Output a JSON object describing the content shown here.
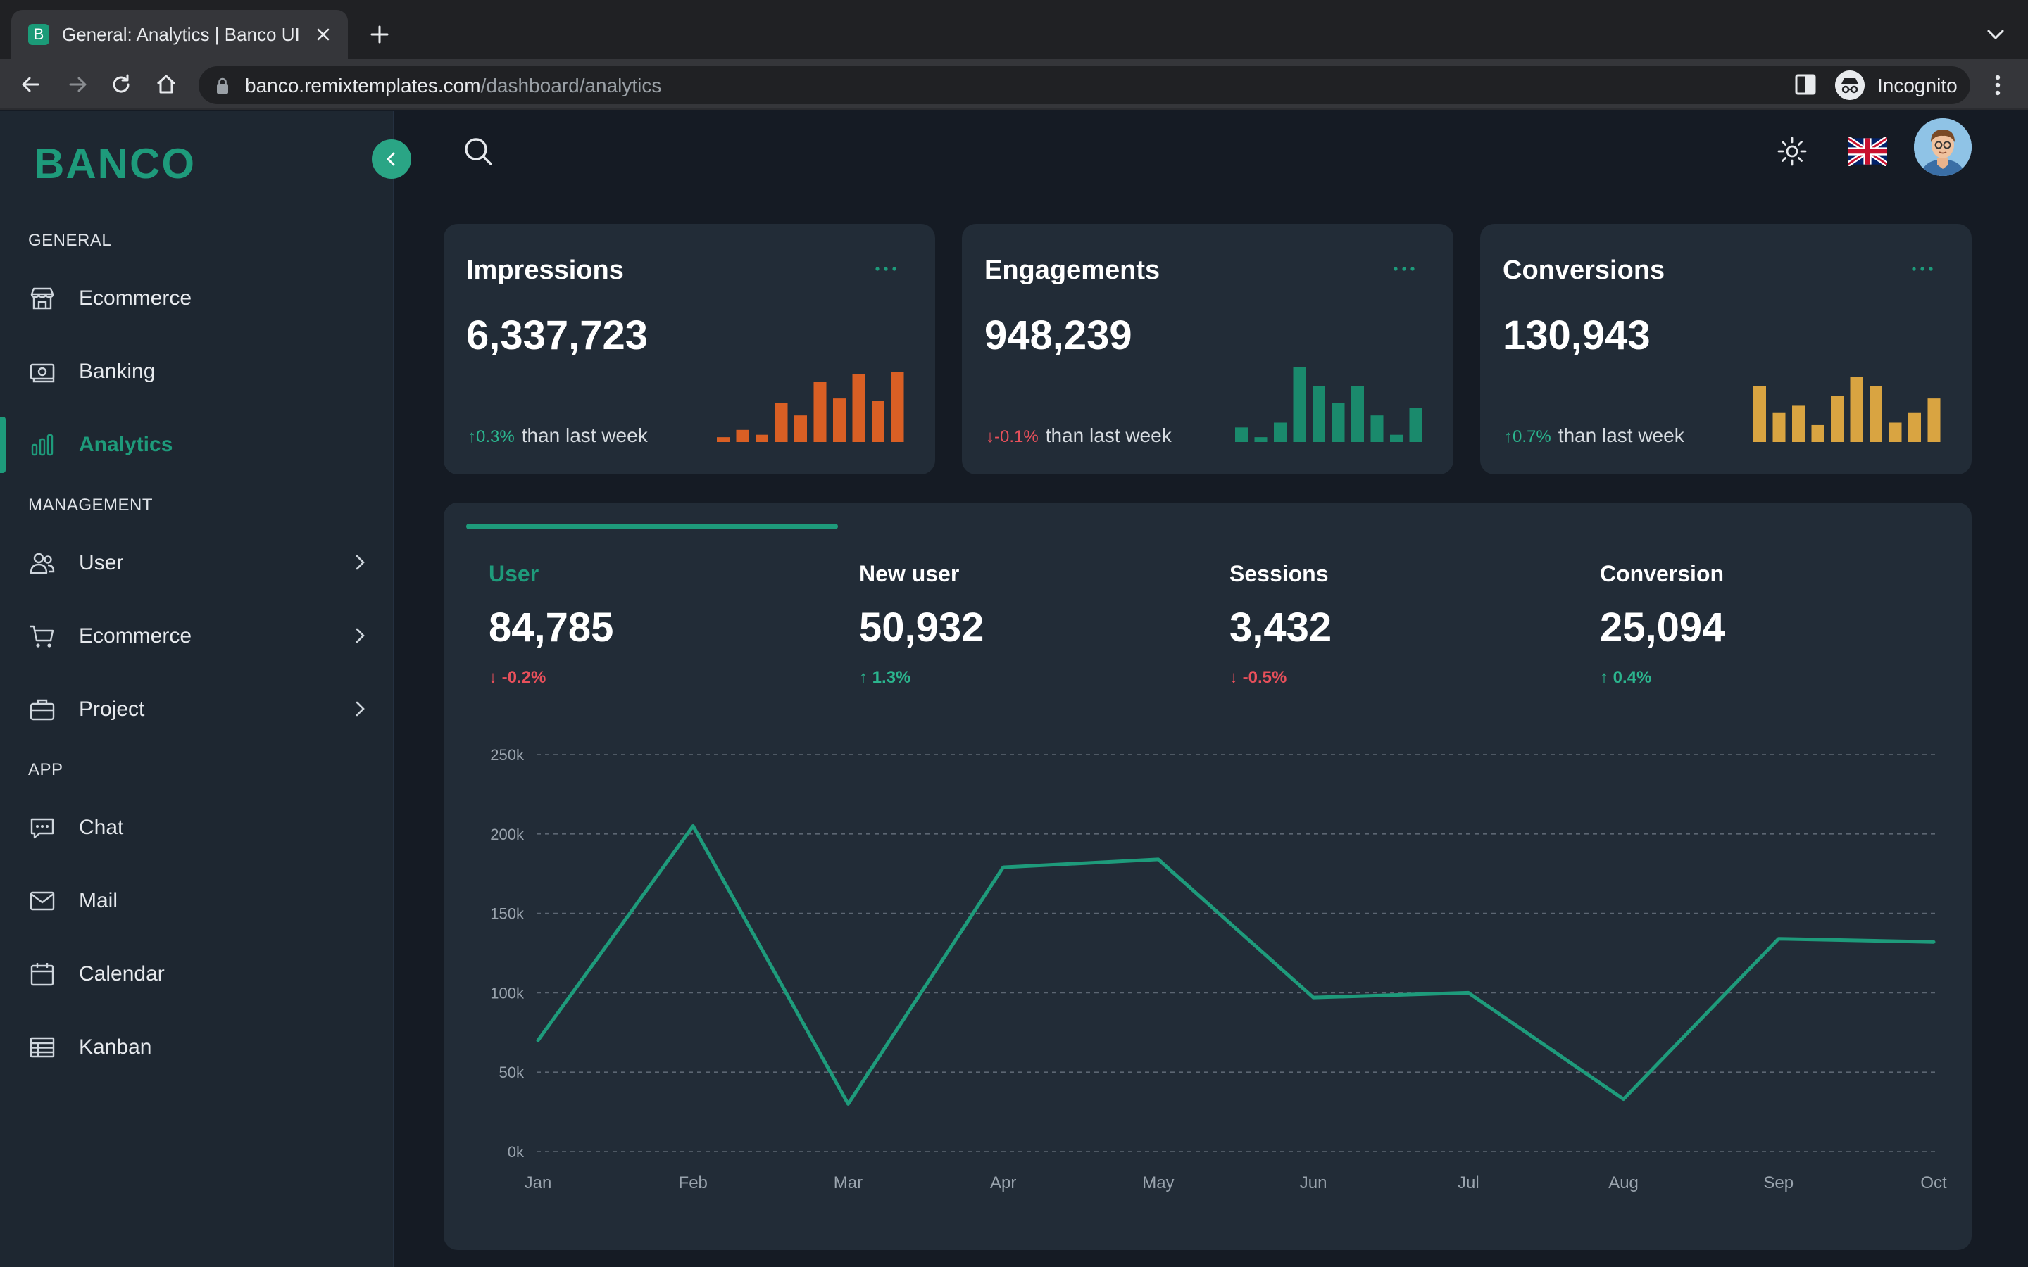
{
  "browser": {
    "tab_title": "General: Analytics | Banco UI",
    "tab_favicon": "B",
    "url_host": "banco.remixtemplates.com",
    "url_path": "/dashboard/analytics",
    "profile_label": "Incognito"
  },
  "sidebar": {
    "logo": "BANCO",
    "sections": {
      "general": "GENERAL",
      "management": "MANAGEMENT",
      "app": "APP"
    },
    "general_items": [
      {
        "label": "Ecommerce",
        "icon": "store-icon"
      },
      {
        "label": "Banking",
        "icon": "banknote-icon"
      },
      {
        "label": "Analytics",
        "icon": "bar-chart-icon",
        "active": true
      }
    ],
    "management_items": [
      {
        "label": "User",
        "icon": "users-icon"
      },
      {
        "label": "Ecommerce",
        "icon": "cart-icon"
      },
      {
        "label": "Project",
        "icon": "briefcase-icon"
      }
    ],
    "app_items": [
      {
        "label": "Chat",
        "icon": "chat-icon"
      },
      {
        "label": "Mail",
        "icon": "mail-icon"
      },
      {
        "label": "Calendar",
        "icon": "calendar-icon"
      },
      {
        "label": "Kanban",
        "icon": "table-icon"
      }
    ]
  },
  "colors": {
    "accent": "#1e9b7b",
    "impressions": "#d95f24",
    "engagements": "#1a8a6c",
    "conversions": "#d9a441",
    "up": "#2bb58e",
    "down": "#e8505b"
  },
  "cards": [
    {
      "title": "Impressions",
      "value": "6,337,723",
      "arrow": "↑",
      "delta": "0.3%",
      "direction": "up",
      "comparison": "than last week",
      "bars": [
        4,
        10,
        6,
        32,
        22,
        50,
        36,
        56,
        34,
        58
      ]
    },
    {
      "title": "Engagements",
      "value": "948,239",
      "arrow": "↓",
      "delta": "-0.1%",
      "direction": "down",
      "comparison": "than last week",
      "bars": [
        12,
        4,
        16,
        62,
        46,
        32,
        46,
        22,
        6,
        28
      ]
    },
    {
      "title": "Conversions",
      "value": "130,943",
      "arrow": "↑",
      "delta": "0.7%",
      "direction": "up",
      "comparison": "than last week",
      "bars": [
        46,
        24,
        30,
        14,
        38,
        54,
        46,
        16,
        24,
        36
      ]
    }
  ],
  "metrics": [
    {
      "label": "User",
      "value": "84,785",
      "arrow": "↓",
      "delta": "-0.2%",
      "direction": "down",
      "active": true
    },
    {
      "label": "New user",
      "value": "50,932",
      "arrow": "↑",
      "delta": "1.3%",
      "direction": "up"
    },
    {
      "label": "Sessions",
      "value": "3,432",
      "arrow": "↓",
      "delta": "-0.5%",
      "direction": "down"
    },
    {
      "label": "Conversion",
      "value": "25,094",
      "arrow": "↑",
      "delta": "0.4%",
      "direction": "up"
    }
  ],
  "chart_data": {
    "type": "line",
    "title": "",
    "xlabel": "",
    "ylabel": "",
    "categories": [
      "Jan",
      "Feb",
      "Mar",
      "Apr",
      "May",
      "Jun",
      "Jul",
      "Aug",
      "Sep",
      "Oct"
    ],
    "series": [
      {
        "name": "User",
        "values": [
          70000,
          205000,
          30000,
          179000,
          184000,
          97000,
          100000,
          33000,
          134000,
          132000
        ]
      }
    ],
    "y_ticks": [
      0,
      50000,
      100000,
      150000,
      200000,
      250000
    ],
    "y_tick_labels": [
      "0k",
      "50k",
      "100k",
      "150k",
      "200k",
      "250k"
    ],
    "ylim": [
      0,
      250000
    ],
    "grid": true
  }
}
